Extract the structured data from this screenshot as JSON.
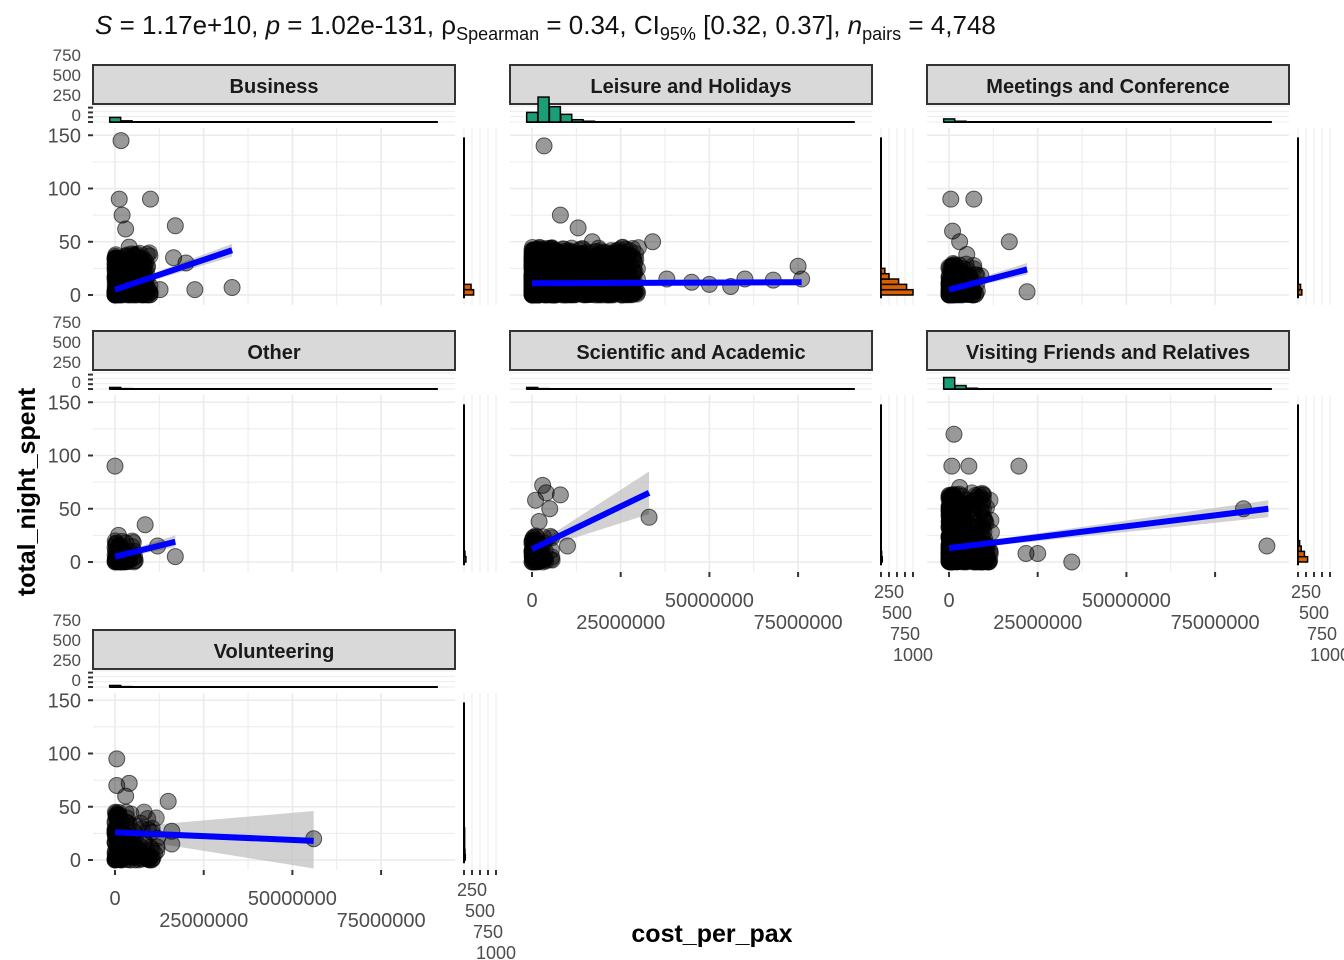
{
  "chart_data": {
    "type": "scatter",
    "title_parts": {
      "S": "1.17e+10",
      "p": "1.02e-131",
      "rho_label": "ρ",
      "rho_sub": "Spearman",
      "rho": "0.34",
      "ci_label": "CI",
      "ci_sub": "95%",
      "ci": "[0.32, 0.37]",
      "n_label": "n",
      "n_sub": "pairs",
      "n": "4,748"
    },
    "xlabel": "cost_per_pax",
    "ylabel": "total_night_spent",
    "xlim_millions": [
      -6,
      96
    ],
    "ylim": [
      -9,
      157
    ],
    "x_ticks": [
      0,
      25000000,
      50000000,
      75000000
    ],
    "x_tick_labels": [
      "0",
      "25000000",
      "50000000",
      "75000000"
    ],
    "y_ticks": [
      0,
      50,
      100,
      150
    ],
    "y_tick_labels": [
      "0",
      "50",
      "100",
      "150"
    ],
    "marginal_tick_labels": [
      "0",
      "250",
      "500",
      "750"
    ],
    "marginal_right_tick_labels": [
      "0",
      "250",
      "500",
      "750",
      "1000"
    ],
    "colors": {
      "points": "#000000",
      "fit": "#0000FF",
      "ci": "#BEBEBE",
      "top_hist": "#1B9E77",
      "right_hist": "#D95F02",
      "strip": "#D9D9D9"
    },
    "panels": [
      {
        "name": "Business",
        "cluster": {
          "x_max": 10,
          "y_max": 40,
          "n": 300
        },
        "points": [
          [
            1.7,
            145
          ],
          [
            1.2,
            90
          ],
          [
            10,
            90
          ],
          [
            2,
            75
          ],
          [
            3,
            62
          ],
          [
            17,
            65
          ],
          [
            16.5,
            35
          ],
          [
            20,
            30
          ],
          [
            22.5,
            5
          ],
          [
            33,
            7
          ],
          [
            12.7,
            5
          ],
          [
            4,
            45
          ]
        ],
        "fit": [
          [
            0,
            5
          ],
          [
            33,
            42
          ]
        ],
        "ci_end": [
          36,
          48
        ],
        "top_hist": [
          120,
          30,
          5,
          2
        ],
        "right_hist": [
          [
            0,
            5,
            300
          ],
          [
            5,
            10,
            220
          ]
        ]
      },
      {
        "name": "Leisure and Holidays",
        "cluster": {
          "x_max": 30,
          "y_max": 45,
          "n": 900
        },
        "points": [
          [
            3.4,
            140
          ],
          [
            8,
            75
          ],
          [
            13,
            63
          ],
          [
            17,
            50
          ],
          [
            34,
            50
          ],
          [
            60,
            15
          ],
          [
            68,
            14
          ],
          [
            75,
            27
          ],
          [
            76,
            15
          ],
          [
            50,
            10
          ],
          [
            56,
            8
          ],
          [
            38,
            15
          ],
          [
            45,
            12
          ],
          [
            27,
            20
          ]
        ],
        "fit": [
          [
            0,
            11
          ],
          [
            76,
            12
          ]
        ],
        "ci_end": [
          10,
          15
        ],
        "top_hist": [
          250,
          650,
          400,
          200,
          60,
          20,
          5
        ],
        "right_hist": [
          [
            0,
            5,
            1000
          ],
          [
            5,
            10,
            800
          ],
          [
            10,
            15,
            550
          ],
          [
            15,
            20,
            250
          ],
          [
            20,
            25,
            120
          ]
        ]
      },
      {
        "name": "Meetings and Conference",
        "cluster": {
          "x_max": 8,
          "y_max": 30,
          "n": 150
        },
        "points": [
          [
            0.5,
            90
          ],
          [
            7,
            90
          ],
          [
            1,
            60
          ],
          [
            5,
            38
          ],
          [
            17,
            50
          ],
          [
            22,
            3
          ],
          [
            3,
            50
          ],
          [
            9,
            18
          ]
        ],
        "fit": [
          [
            0,
            5
          ],
          [
            22,
            24
          ]
        ],
        "ci_end": [
          19,
          30
        ],
        "top_hist": [
          80,
          20,
          5
        ],
        "right_hist": [
          [
            0,
            5,
            120
          ],
          [
            5,
            10,
            80
          ]
        ]
      },
      {
        "name": "Other",
        "cluster": {
          "x_max": 6,
          "y_max": 20,
          "n": 60
        },
        "points": [
          [
            0,
            90
          ],
          [
            8.5,
            35
          ],
          [
            17,
            5
          ],
          [
            12,
            15
          ],
          [
            1,
            25
          ],
          [
            3,
            18
          ]
        ],
        "fit": [
          [
            0,
            5
          ],
          [
            17,
            19
          ]
        ],
        "ci_end": [
          14,
          25
        ],
        "top_hist": [
          40,
          10
        ],
        "right_hist": [
          [
            0,
            5,
            60
          ],
          [
            5,
            10,
            30
          ]
        ]
      },
      {
        "name": "Scientific and Academic",
        "cluster": {
          "x_max": 6,
          "y_max": 25,
          "n": 60
        },
        "points": [
          [
            3,
            72
          ],
          [
            4,
            65
          ],
          [
            8,
            63
          ],
          [
            1,
            58
          ],
          [
            33,
            42
          ],
          [
            10,
            15
          ],
          [
            2,
            38
          ],
          [
            5,
            50
          ]
        ],
        "fit": [
          [
            0,
            12
          ],
          [
            33,
            65
          ]
        ],
        "ci_end": [
          45,
          85
        ],
        "top_hist": [
          40,
          10
        ],
        "right_hist": [
          [
            0,
            5,
            40
          ],
          [
            5,
            10,
            20
          ]
        ]
      },
      {
        "name": "Visiting Friends and Relatives",
        "cluster": {
          "x_max": 12,
          "y_max": 65,
          "n": 400
        },
        "points": [
          [
            1.4,
            120
          ],
          [
            0.8,
            90
          ],
          [
            5.6,
            90
          ],
          [
            19.7,
            90
          ],
          [
            21.7,
            8
          ],
          [
            25,
            8
          ],
          [
            34.6,
            0
          ],
          [
            83,
            50
          ],
          [
            89.6,
            15
          ],
          [
            3,
            70
          ],
          [
            10,
            40
          ]
        ],
        "fit": [
          [
            0,
            13
          ],
          [
            90,
            50
          ]
        ],
        "ci_end": [
          42,
          58
        ],
        "top_hist": [
          300,
          90,
          20,
          5
        ],
        "right_hist": [
          [
            0,
            5,
            300
          ],
          [
            5,
            10,
            200
          ],
          [
            10,
            15,
            100
          ],
          [
            15,
            20,
            50
          ]
        ]
      },
      {
        "name": "Volunteering",
        "cluster": {
          "x_max": 12,
          "y_max": 45,
          "n": 150
        },
        "points": [
          [
            0.5,
            95
          ],
          [
            0.5,
            70
          ],
          [
            4,
            72
          ],
          [
            15,
            55
          ],
          [
            16,
            27
          ],
          [
            16,
            15
          ],
          [
            56,
            20
          ],
          [
            3,
            60
          ],
          [
            10,
            12
          ]
        ],
        "fit": [
          [
            0,
            26
          ],
          [
            56,
            18
          ]
        ],
        "ci_start": [
          22,
          30
        ],
        "ci_end": [
          -8,
          46
        ],
        "top_hist": [
          40,
          10
        ],
        "right_hist": [
          [
            0,
            5,
            40
          ],
          [
            5,
            10,
            30
          ],
          [
            10,
            30,
            20
          ]
        ]
      }
    ]
  }
}
